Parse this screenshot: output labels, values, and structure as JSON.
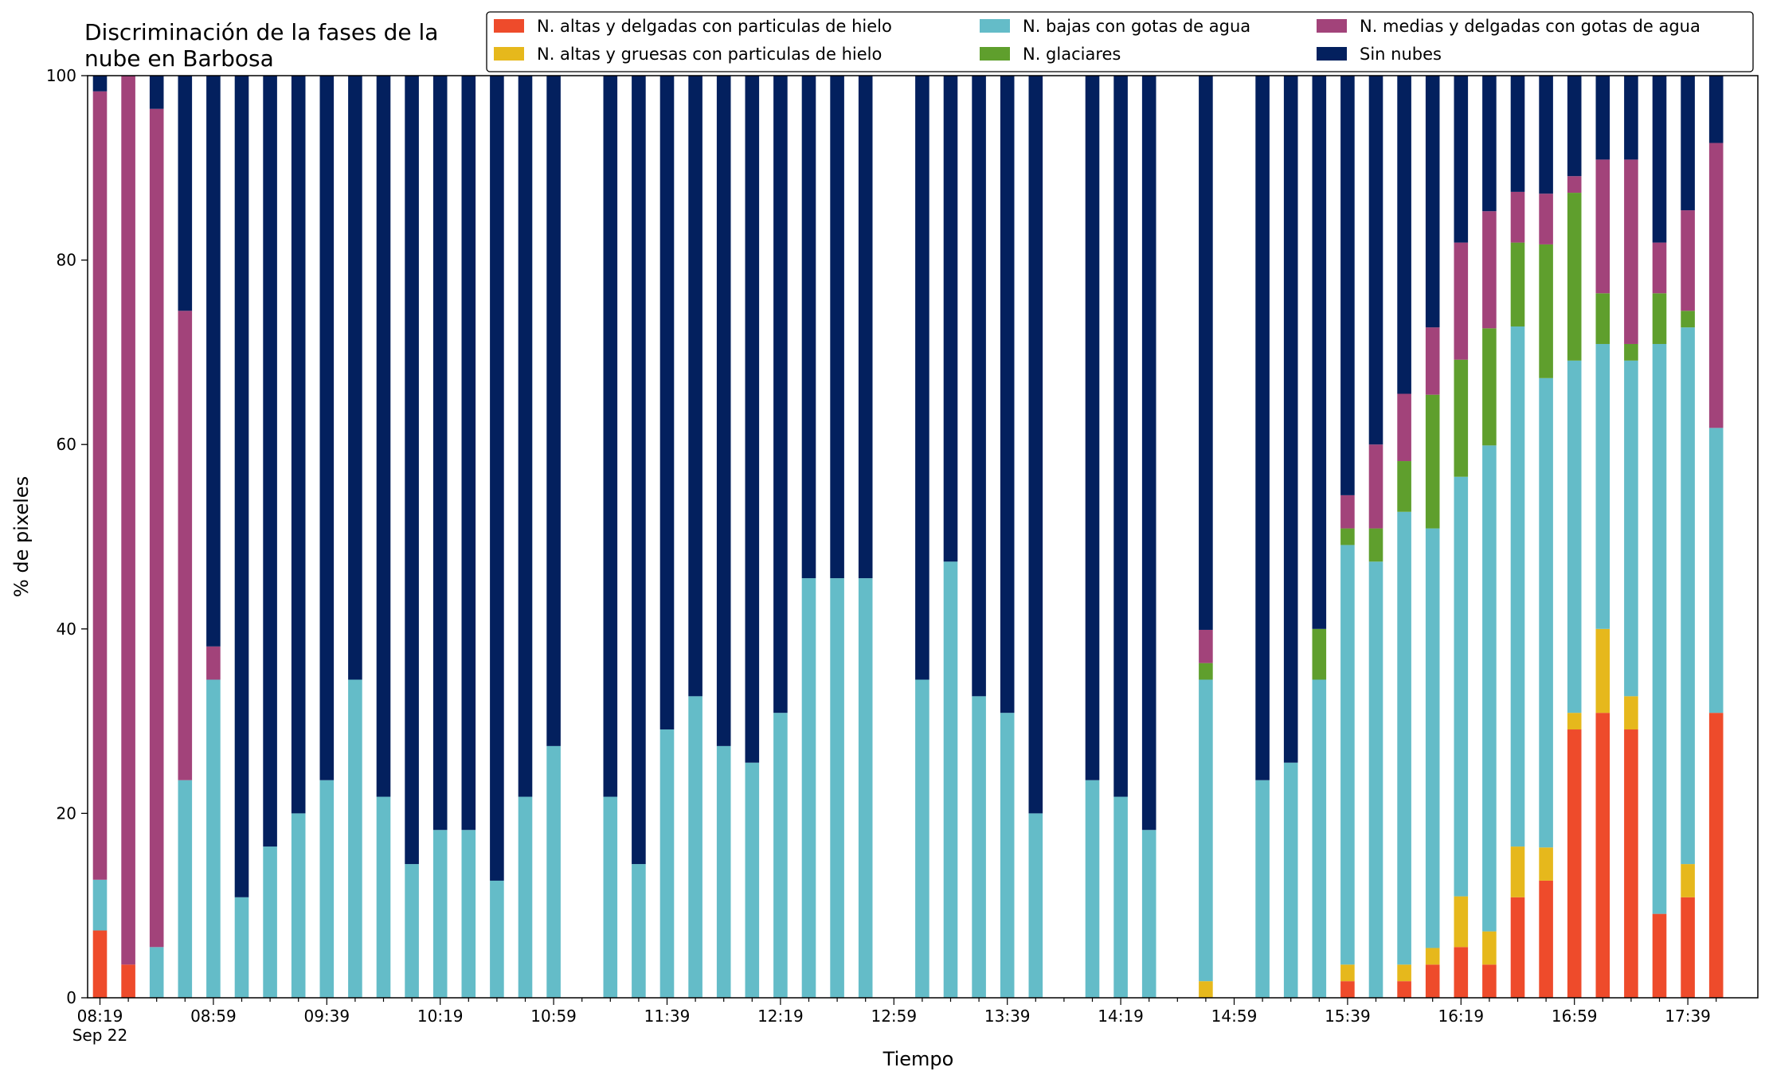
{
  "chart_data": {
    "type": "bar",
    "stacked": true,
    "title_lines": [
      "Discriminación de la fases de la",
      "nube en Barbosa"
    ],
    "xlabel": "Tiempo",
    "ylabel": "% de pixeles",
    "ylim": [
      0,
      100
    ],
    "yticks": [
      0,
      20,
      40,
      60,
      80,
      100
    ],
    "grid": false,
    "legend_position": "top-right",
    "x_start": "08:19",
    "x_step_minutes": 10,
    "x_count": 58,
    "x_tick_labels": [
      {
        "index": 0,
        "label": "08:19",
        "sub": "Sep 22"
      },
      {
        "index": 4,
        "label": "08:59"
      },
      {
        "index": 8,
        "label": "09:39"
      },
      {
        "index": 12,
        "label": "10:19"
      },
      {
        "index": 16,
        "label": "10:59"
      },
      {
        "index": 20,
        "label": "11:39"
      },
      {
        "index": 24,
        "label": "12:19"
      },
      {
        "index": 28,
        "label": "12:59"
      },
      {
        "index": 32,
        "label": "13:39"
      },
      {
        "index": 36,
        "label": "14:19"
      },
      {
        "index": 40,
        "label": "14:59"
      },
      {
        "index": 44,
        "label": "15:39"
      },
      {
        "index": 48,
        "label": "16:19"
      },
      {
        "index": 52,
        "label": "16:59"
      },
      {
        "index": 56,
        "label": "17:39"
      }
    ],
    "series": [
      {
        "name": "N. altas y delgadas con particulas de hielo",
        "color": "#ee4b2b"
      },
      {
        "name": "N. altas y gruesas con particulas de hielo",
        "color": "#e6b81c"
      },
      {
        "name": "N. bajas con gotas de agua",
        "color": "#64bcc8"
      },
      {
        "name": "N. glaciares",
        "color": "#5f9f2d"
      },
      {
        "name": "N. medias y delgadas con gotas de agua",
        "color": "#a2437a"
      },
      {
        "name": "Sin nubes",
        "color": "#03205e"
      }
    ],
    "stack_order": [
      0,
      1,
      2,
      3,
      4,
      5
    ],
    "bars": [
      {
        "i": 0,
        "v": [
          7.3,
          0,
          5.5,
          0,
          85.5,
          1.7
        ]
      },
      {
        "i": 1,
        "v": [
          3.6,
          0,
          0,
          0,
          96.4,
          0
        ]
      },
      {
        "i": 2,
        "v": [
          0,
          0,
          5.5,
          0,
          90.9,
          3.6
        ]
      },
      {
        "i": 3,
        "v": [
          0,
          0,
          23.6,
          0,
          50.9,
          25.5
        ]
      },
      {
        "i": 4,
        "v": [
          0,
          0,
          34.5,
          0,
          3.6,
          61.9
        ]
      },
      {
        "i": 5,
        "v": [
          0,
          0,
          10.9,
          0,
          0,
          89.1
        ]
      },
      {
        "i": 6,
        "v": [
          0,
          0,
          16.4,
          0,
          0,
          83.6
        ]
      },
      {
        "i": 7,
        "v": [
          0,
          0,
          20.0,
          0,
          0,
          80.0
        ]
      },
      {
        "i": 8,
        "v": [
          0,
          0,
          23.6,
          0,
          0,
          76.4
        ]
      },
      {
        "i": 9,
        "v": [
          0,
          0,
          34.5,
          0,
          0,
          65.5
        ]
      },
      {
        "i": 10,
        "v": [
          0,
          0,
          21.8,
          0,
          0,
          78.2
        ]
      },
      {
        "i": 11,
        "v": [
          0,
          0,
          14.5,
          0,
          0,
          85.5
        ]
      },
      {
        "i": 12,
        "v": [
          0,
          0,
          18.2,
          0,
          0,
          81.8
        ]
      },
      {
        "i": 13,
        "v": [
          0,
          0,
          18.2,
          0,
          0,
          81.8
        ]
      },
      {
        "i": 14,
        "v": [
          0,
          0,
          12.7,
          0,
          0,
          87.3
        ]
      },
      {
        "i": 15,
        "v": [
          0,
          0,
          21.8,
          0,
          0,
          78.2
        ]
      },
      {
        "i": 16,
        "v": [
          0,
          0,
          27.3,
          0,
          0,
          72.7
        ]
      },
      {
        "i": 18,
        "v": [
          0,
          0,
          21.8,
          0,
          0,
          78.2
        ]
      },
      {
        "i": 19,
        "v": [
          0,
          0,
          14.5,
          0,
          0,
          85.5
        ]
      },
      {
        "i": 20,
        "v": [
          0,
          0,
          29.1,
          0,
          0,
          70.9
        ]
      },
      {
        "i": 21,
        "v": [
          0,
          0,
          32.7,
          0,
          0,
          67.3
        ]
      },
      {
        "i": 22,
        "v": [
          0,
          0,
          27.3,
          0,
          0,
          72.7
        ]
      },
      {
        "i": 23,
        "v": [
          0,
          0,
          25.5,
          0,
          0,
          74.5
        ]
      },
      {
        "i": 24,
        "v": [
          0,
          0,
          30.9,
          0,
          0,
          69.1
        ]
      },
      {
        "i": 25,
        "v": [
          0,
          0,
          45.5,
          0,
          0,
          54.5
        ]
      },
      {
        "i": 26,
        "v": [
          0,
          0,
          45.5,
          0,
          0,
          54.5
        ]
      },
      {
        "i": 27,
        "v": [
          0,
          0,
          45.5,
          0,
          0,
          54.5
        ]
      },
      {
        "i": 29,
        "v": [
          0,
          0,
          34.5,
          0,
          0,
          65.5
        ]
      },
      {
        "i": 30,
        "v": [
          0,
          0,
          47.3,
          0,
          0,
          52.7
        ]
      },
      {
        "i": 31,
        "v": [
          0,
          0,
          32.7,
          0,
          0,
          67.3
        ]
      },
      {
        "i": 32,
        "v": [
          0,
          0,
          30.9,
          0,
          0,
          69.1
        ]
      },
      {
        "i": 33,
        "v": [
          0,
          0,
          20.0,
          0,
          0,
          80.0
        ]
      },
      {
        "i": 35,
        "v": [
          0,
          0,
          23.6,
          0,
          0,
          76.4
        ]
      },
      {
        "i": 36,
        "v": [
          0,
          0,
          21.8,
          0,
          0,
          78.2
        ]
      },
      {
        "i": 37,
        "v": [
          0,
          0,
          18.2,
          0,
          0,
          81.8
        ]
      },
      {
        "i": 39,
        "v": [
          0,
          1.8,
          32.7,
          1.8,
          3.6,
          60.1
        ]
      },
      {
        "i": 41,
        "v": [
          0,
          0,
          23.6,
          0,
          0,
          76.4
        ]
      },
      {
        "i": 42,
        "v": [
          0,
          0,
          25.5,
          0,
          0,
          74.5
        ]
      },
      {
        "i": 43,
        "v": [
          0,
          0,
          34.5,
          5.5,
          0,
          60.0
        ]
      },
      {
        "i": 44,
        "v": [
          1.8,
          1.8,
          45.5,
          1.8,
          3.6,
          45.5
        ]
      },
      {
        "i": 45,
        "v": [
          0,
          0,
          47.3,
          3.6,
          9.1,
          40.0
        ]
      },
      {
        "i": 46,
        "v": [
          1.8,
          1.8,
          49.1,
          5.5,
          7.3,
          34.5
        ]
      },
      {
        "i": 47,
        "v": [
          3.6,
          1.8,
          45.5,
          14.5,
          7.3,
          27.3
        ]
      },
      {
        "i": 48,
        "v": [
          5.5,
          5.5,
          45.5,
          12.7,
          12.7,
          18.1
        ]
      },
      {
        "i": 49,
        "v": [
          3.6,
          3.6,
          52.7,
          12.7,
          12.7,
          14.7
        ]
      },
      {
        "i": 50,
        "v": [
          10.9,
          5.5,
          56.4,
          9.1,
          5.5,
          12.6
        ]
      },
      {
        "i": 51,
        "v": [
          12.7,
          3.6,
          50.9,
          14.5,
          5.5,
          12.8
        ]
      },
      {
        "i": 52,
        "v": [
          29.1,
          1.8,
          38.2,
          18.2,
          1.8,
          10.9
        ]
      },
      {
        "i": 53,
        "v": [
          30.9,
          9.1,
          30.9,
          5.5,
          14.5,
          9.1
        ]
      },
      {
        "i": 54,
        "v": [
          29.1,
          3.6,
          36.4,
          1.8,
          20.0,
          9.1
        ]
      },
      {
        "i": 55,
        "v": [
          9.1,
          0,
          61.8,
          5.5,
          5.5,
          18.1
        ]
      },
      {
        "i": 56,
        "v": [
          10.9,
          3.6,
          58.2,
          1.8,
          10.9,
          14.6
        ]
      },
      {
        "i": 57,
        "v": [
          30.9,
          0,
          30.9,
          0,
          30.9,
          7.3
        ]
      }
    ]
  }
}
